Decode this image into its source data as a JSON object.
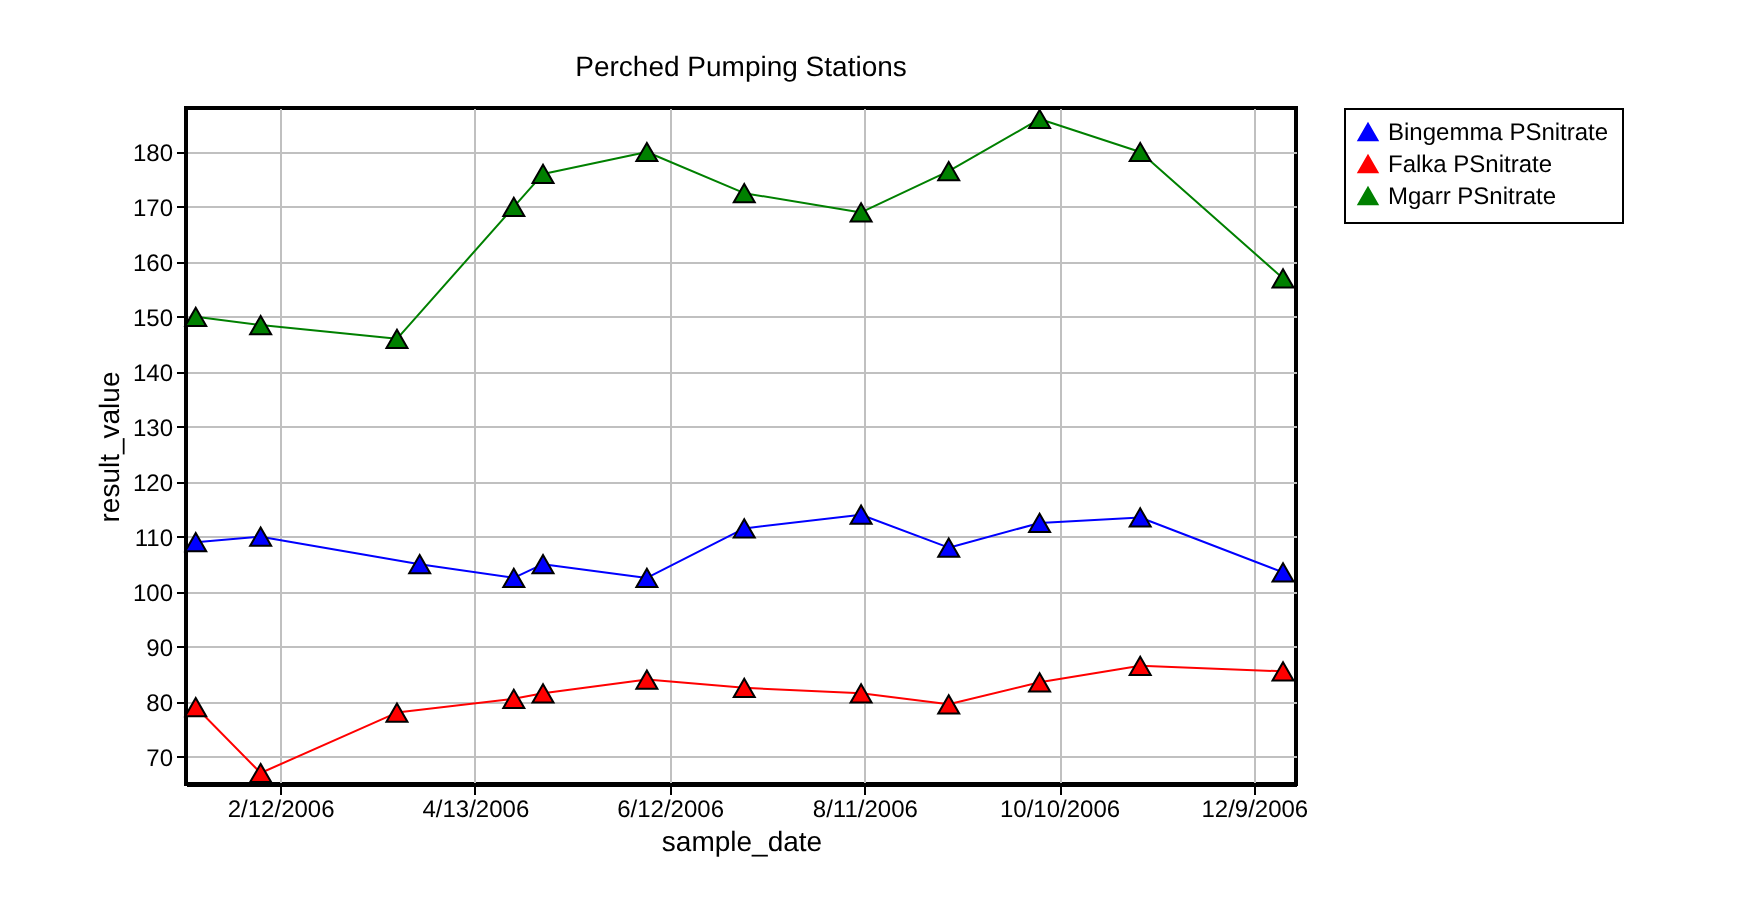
{
  "chart_data": {
    "type": "line",
    "title": "Perched Pumping Stations",
    "xlabel": "sample_date",
    "ylabel": "result_value",
    "x": [
      "2006-01-17",
      "2006-02-06",
      "2006-03-27",
      "2006-04-25",
      "2006-05-04",
      "2006-06-05",
      "2006-07-05",
      "2006-08-10",
      "2006-09-06",
      "2006-10-04",
      "2006-11-04",
      "2006-12-18"
    ],
    "series": [
      {
        "name": "Bingemma PSnitrate",
        "color": "#0000ff",
        "values": [
          109,
          110,
          105,
          102.5,
          105,
          102.5,
          111.5,
          114,
          108,
          112.5,
          113.5,
          103.5
        ]
      },
      {
        "name": "Falka PSnitrate",
        "color": "#ff0000",
        "x": [
          "2006-01-17",
          "2006-02-06",
          "2006-03-20",
          "2006-04-25",
          "2006-05-04",
          "2006-06-05",
          "2006-07-05",
          "2006-08-10",
          "2006-09-06",
          "2006-10-04",
          "2006-11-04",
          "2006-12-18"
        ],
        "values": [
          79,
          67,
          78,
          80.5,
          81.5,
          84,
          82.5,
          81.5,
          79.5,
          83.5,
          86.5,
          85.5
        ]
      },
      {
        "name": "Mgarr PSnitrate",
        "color": "#008000",
        "x": [
          "2006-01-17",
          "2006-02-06",
          "2006-03-20",
          "2006-04-25",
          "2006-05-04",
          "2006-06-05",
          "2006-07-05",
          "2006-08-10",
          "2006-09-06",
          "2006-10-04",
          "2006-11-04",
          "2006-12-18"
        ],
        "values": [
          150,
          148.5,
          146,
          170,
          176,
          180,
          172.5,
          169,
          176.5,
          186,
          180,
          157
        ]
      }
    ],
    "xlim": [
      "2006-01-14",
      "2006-12-22"
    ],
    "xticks": [
      {
        "value": "2006-02-12",
        "label": "2/12/2006"
      },
      {
        "value": "2006-04-13",
        "label": "4/13/2006"
      },
      {
        "value": "2006-06-12",
        "label": "6/12/2006"
      },
      {
        "value": "2006-08-11",
        "label": "8/11/2006"
      },
      {
        "value": "2006-10-10",
        "label": "10/10/2006"
      },
      {
        "value": "2006-12-09",
        "label": "12/9/2006"
      }
    ],
    "ylim": [
      65,
      188
    ],
    "yticks": [
      70,
      80,
      90,
      100,
      110,
      120,
      130,
      140,
      150,
      160,
      170,
      180
    ],
    "grid": true,
    "legend": "top right",
    "marker": "triangle",
    "line_style": "solid"
  }
}
